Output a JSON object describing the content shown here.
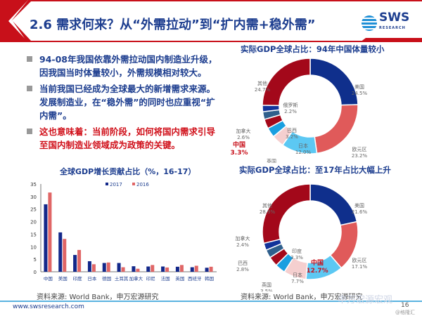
{
  "header": {
    "title": "2.6 需求何来？从“外需拉动”到“扩内需+稳外需”",
    "logo_text": "SWS",
    "logo_sub": "RESEARCH"
  },
  "bullets": [
    {
      "text": "94-08年我国依靠外需拉动国内制造业升级，因我国当时体量较小，外需规模相对较大。",
      "color": "#1c3d8f"
    },
    {
      "text": "当前我国已经成为全球最大的新增需求来源。发展制造业，在“稳外需”的同时也应重视“扩内需”。",
      "color": "#1c3d8f"
    },
    {
      "text": "这也意味着：当前阶段，如何将国内需求引导至国内制造业领域成为政策的关键。",
      "color": "#d0101a"
    }
  ],
  "chart_data": [
    {
      "type": "bar",
      "title": "全球GDP增长贡献占比（%，16-17）",
      "categories": [
        "中国",
        "美国",
        "印度",
        "日本",
        "德国",
        "土耳其",
        "加拿大",
        "印尼",
        "法国",
        "英国",
        "西班牙",
        "韩国"
      ],
      "series": [
        {
          "name": "2017",
          "color": "#13288a",
          "values": [
            26.9,
            15.7,
            6.7,
            4.2,
            3.5,
            3.5,
            2.2,
            2.1,
            2.1,
            2.0,
            1.8,
            1.6
          ]
        },
        {
          "name": "2016",
          "color": "#e06666",
          "values": [
            31.6,
            13.1,
            8.7,
            3.0,
            3.7,
            1.8,
            1.2,
            2.7,
            1.7,
            2.7,
            2.4,
            2.0
          ]
        }
      ],
      "ylim": [
        0,
        35
      ],
      "yticks": [
        "0",
        "5",
        "10",
        "15",
        "20",
        "25",
        "30",
        "35"
      ],
      "legend": "top",
      "source": "资料来源: World Bank，申万宏源研究"
    },
    {
      "type": "pie",
      "title": "实际GDP全球占比：94年中国体量较小",
      "slices": [
        {
          "label": "美国",
          "value": 24.5,
          "pct": "24.5%",
          "color": "#0f2f8c"
        },
        {
          "label": "欧元区",
          "value": 23.2,
          "pct": "23.2%",
          "color": "#e05a5a"
        },
        {
          "label": "日本",
          "value": 12.0,
          "pct": "12.0%",
          "color": "#5cc8f3"
        },
        {
          "label": "英国",
          "value": 4.2,
          "pct": "4.2%",
          "color": "#f5cfcf"
        },
        {
          "label": "中国",
          "value": 3.3,
          "pct": "3.3%",
          "color": "#1a9fe0"
        },
        {
          "label": "巴西",
          "value": 3.2,
          "pct": "3.2%",
          "color": "#a3081a"
        },
        {
          "label": "加拿大",
          "value": 2.6,
          "pct": "2.6%",
          "color": "#2f5f8c"
        },
        {
          "label": "俄罗斯",
          "value": 2.2,
          "pct": "2.2%",
          "color": "#12339a"
        },
        {
          "label": "其他",
          "value": 24.7,
          "pct": "24.7%",
          "color": "#a3081a"
        }
      ]
    },
    {
      "type": "pie",
      "title": "实际GDP全球占比：至17年占比大幅上升",
      "slices": [
        {
          "label": "美国",
          "value": 21.6,
          "pct": "21.6%",
          "color": "#0f2f8c"
        },
        {
          "label": "欧元区",
          "value": 17.1,
          "pct": "17.1%",
          "color": "#e05a5a"
        },
        {
          "label": "中国",
          "value": 12.7,
          "pct": "12.7%",
          "color": "#5cc8f3"
        },
        {
          "label": "日本",
          "value": 7.7,
          "pct": "7.7%",
          "color": "#f5cfcf"
        },
        {
          "label": "英国",
          "value": 3.5,
          "pct": "3.5%",
          "color": "#1a9fe0"
        },
        {
          "label": "印度",
          "value": 3.3,
          "pct": "3.3%",
          "color": "#a3081a"
        },
        {
          "label": "巴西",
          "value": 2.8,
          "pct": "2.8%",
          "color": "#2f5f8c"
        },
        {
          "label": "加拿大",
          "value": 2.4,
          "pct": "2.4%",
          "color": "#12339a"
        },
        {
          "label": "其他",
          "value": 28.9,
          "pct": "28.9%",
          "color": "#a3081a"
        }
      ],
      "source": "资料来源: World Bank，申万宏源研究"
    }
  ],
  "footer": {
    "url": "www.swsresearch.com",
    "page": "16",
    "watermark": "申万宏源宏观",
    "watermark2": "@格隆汇"
  }
}
